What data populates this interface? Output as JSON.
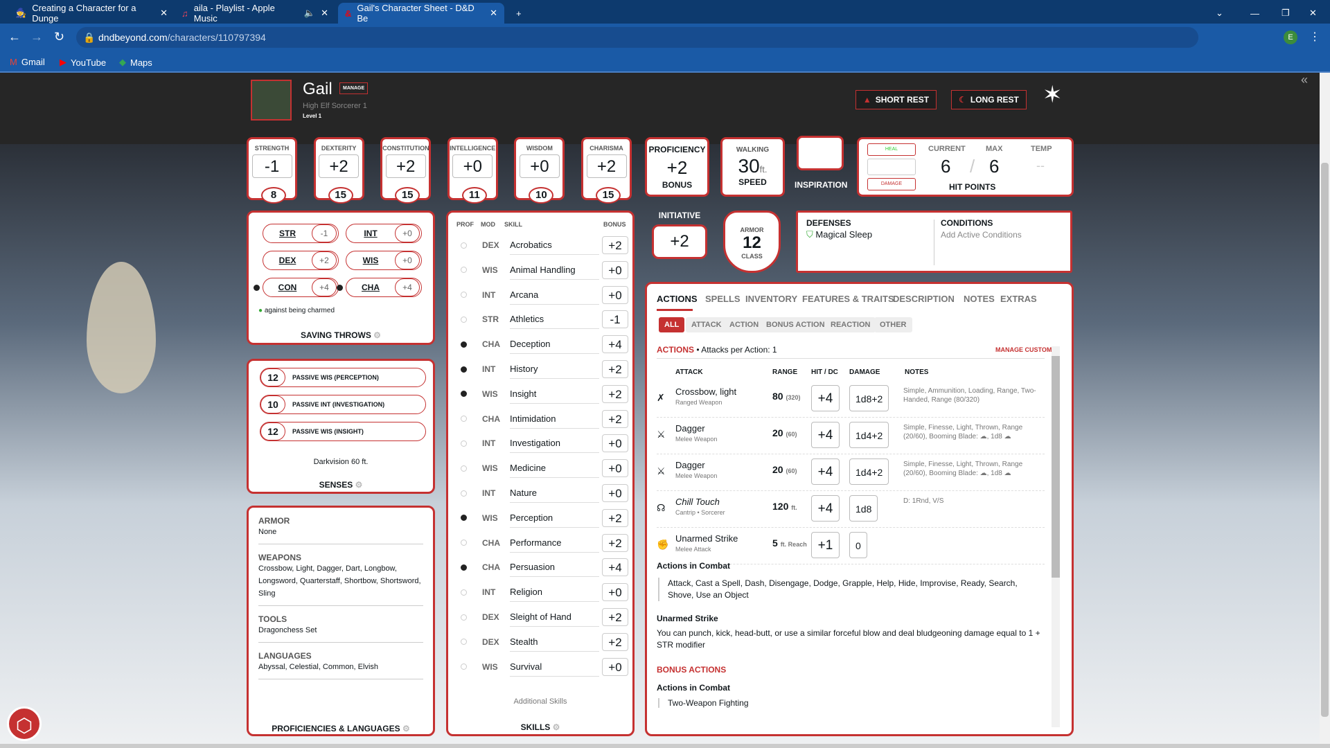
{
  "browser": {
    "tabs": [
      {
        "title": "Creating a Character for a Dunge",
        "icon": "dndbeyond-blog-icon"
      },
      {
        "title": "aila - Playlist - Apple Music",
        "icon": "apple-music-icon",
        "audio": true
      },
      {
        "title": "Gail's Character Sheet - D&D Be",
        "icon": "dndbeyond-icon",
        "active": true
      }
    ],
    "url_domain": "dndbeyond.com",
    "url_path": "/characters/110797394",
    "bookmarks": [
      "Gmail",
      "YouTube",
      "Maps"
    ]
  },
  "character": {
    "name": "Gail",
    "manage": "MANAGE",
    "race_class": "High Elf  Sorcerer 1",
    "level": "Level 1"
  },
  "header": {
    "short_rest": "SHORT REST",
    "long_rest": "LONG REST"
  },
  "abilities": [
    {
      "label": "STRENGTH",
      "mod": "-1",
      "score": "8"
    },
    {
      "label": "DEXTERITY",
      "mod": "+2",
      "score": "15"
    },
    {
      "label": "CONSTITUTION",
      "mod": "+2",
      "score": "15"
    },
    {
      "label": "INTELLIGENCE",
      "mod": "+0",
      "score": "11"
    },
    {
      "label": "WISDOM",
      "mod": "+0",
      "score": "10"
    },
    {
      "label": "CHARISMA",
      "mod": "+2",
      "score": "15"
    }
  ],
  "proficiency": {
    "top": "PROFICIENCY",
    "value": "+2",
    "bottom": "BONUS"
  },
  "speed": {
    "top": "WALKING",
    "value": "30",
    "unit": "ft.",
    "bottom": "SPEED"
  },
  "inspiration": {
    "label": "INSPIRATION"
  },
  "hp": {
    "heal": "HEAL",
    "damage": "DAMAGE",
    "current_label": "CURRENT",
    "max_label": "MAX",
    "temp_label": "TEMP",
    "current": "6",
    "max": "6",
    "temp": "--",
    "title": "HIT POINTS"
  },
  "saving_throws": {
    "items": [
      {
        "name": "STR",
        "value": "-1",
        "prof": false
      },
      {
        "name": "INT",
        "value": "+0",
        "prof": false
      },
      {
        "name": "DEX",
        "value": "+2",
        "prof": false
      },
      {
        "name": "WIS",
        "value": "+0",
        "prof": false
      },
      {
        "name": "CON",
        "value": "+4",
        "prof": true
      },
      {
        "name": "CHA",
        "value": "+4",
        "prof": true
      }
    ],
    "note": "against being charmed",
    "title": "SAVING THROWS"
  },
  "senses": {
    "items": [
      {
        "value": "12",
        "label": "PASSIVE WIS (PERCEPTION)"
      },
      {
        "value": "10",
        "label": "PASSIVE INT (INVESTIGATION)"
      },
      {
        "value": "12",
        "label": "PASSIVE WIS (INSIGHT)"
      }
    ],
    "note": "Darkvision 60 ft.",
    "title": "SENSES"
  },
  "proficiencies": {
    "sections": [
      {
        "h": "ARMOR",
        "v": "None"
      },
      {
        "h": "WEAPONS",
        "v": "Crossbow, Light, Dagger, Dart, Longbow, Longsword, Quarterstaff, Shortbow, Shortsword, Sling"
      },
      {
        "h": "TOOLS",
        "v": "Dragonchess Set"
      },
      {
        "h": "LANGUAGES",
        "v": "Abyssal, Celestial, Common, Elvish"
      }
    ],
    "title": "PROFICIENCIES & LANGUAGES"
  },
  "skills": {
    "headers": [
      "PROF",
      "MOD",
      "SKILL",
      "BONUS"
    ],
    "items": [
      {
        "p": false,
        "m": "DEX",
        "n": "Acrobatics",
        "b": "+2"
      },
      {
        "p": false,
        "m": "WIS",
        "n": "Animal Handling",
        "b": "+0"
      },
      {
        "p": false,
        "m": "INT",
        "n": "Arcana",
        "b": "+0"
      },
      {
        "p": false,
        "m": "STR",
        "n": "Athletics",
        "b": "-1"
      },
      {
        "p": true,
        "m": "CHA",
        "n": "Deception",
        "b": "+4"
      },
      {
        "p": true,
        "m": "INT",
        "n": "History",
        "b": "+2"
      },
      {
        "p": true,
        "m": "WIS",
        "n": "Insight",
        "b": "+2"
      },
      {
        "p": false,
        "m": "CHA",
        "n": "Intimidation",
        "b": "+2"
      },
      {
        "p": false,
        "m": "INT",
        "n": "Investigation",
        "b": "+0"
      },
      {
        "p": false,
        "m": "WIS",
        "n": "Medicine",
        "b": "+0"
      },
      {
        "p": false,
        "m": "INT",
        "n": "Nature",
        "b": "+0"
      },
      {
        "p": true,
        "m": "WIS",
        "n": "Perception",
        "b": "+2"
      },
      {
        "p": false,
        "m": "CHA",
        "n": "Performance",
        "b": "+2"
      },
      {
        "p": true,
        "m": "CHA",
        "n": "Persuasion",
        "b": "+4"
      },
      {
        "p": false,
        "m": "INT",
        "n": "Religion",
        "b": "+0"
      },
      {
        "p": false,
        "m": "DEX",
        "n": "Sleight of Hand",
        "b": "+2"
      },
      {
        "p": false,
        "m": "DEX",
        "n": "Stealth",
        "b": "+2"
      },
      {
        "p": false,
        "m": "WIS",
        "n": "Survival",
        "b": "+0"
      }
    ],
    "additional": "Additional Skills",
    "title": "SKILLS"
  },
  "initiative": {
    "label": "INITIATIVE",
    "value": "+2"
  },
  "armor": {
    "top": "ARMOR",
    "value": "12",
    "bottom": "CLASS"
  },
  "defenses": {
    "title": "DEFENSES",
    "items": [
      "Magical Sleep"
    ]
  },
  "conditions": {
    "title": "CONDITIONS",
    "placeholder": "Add Active Conditions"
  },
  "actions": {
    "tabs": [
      "ACTIONS",
      "SPELLS",
      "INVENTORY",
      "FEATURES & TRAITS",
      "DESCRIPTION",
      "NOTES",
      "EXTRAS"
    ],
    "filters": [
      "ALL",
      "ATTACK",
      "ACTION",
      "BONUS ACTION",
      "REACTION",
      "OTHER"
    ],
    "section_title": "ACTIONS",
    "attacks_per": "• Attacks per Action: 1",
    "manage_custom": "MANAGE CUSTOM",
    "columns": [
      "ATTACK",
      "RANGE",
      "HIT / DC",
      "DAMAGE",
      "NOTES"
    ],
    "rows": [
      {
        "icon": "crossbow-icon",
        "name": "Crossbow, light",
        "sub": "Ranged Weapon",
        "range": "80",
        "range2": "(320)",
        "hit": "+4",
        "dmg": "1d8+2",
        "notes": "Simple, Ammunition, Loading, Range, Two-Handed, Range (80/320)"
      },
      {
        "icon": "dagger-icon",
        "name": "Dagger",
        "sub": "Melee Weapon",
        "range": "20",
        "range2": "(60)",
        "hit": "+4",
        "dmg": "1d4+2",
        "notes": "Simple, Finesse, Light, Thrown, Range (20/60), Booming Blade: ☁, 1d8 ☁"
      },
      {
        "icon": "dagger-icon",
        "name": "Dagger",
        "sub": "Melee Weapon",
        "range": "20",
        "range2": "(60)",
        "hit": "+4",
        "dmg": "1d4+2",
        "notes": "Simple, Finesse, Light, Thrown, Range (20/60), Booming Blade: ☁, 1d8 ☁"
      },
      {
        "icon": "spell-icon",
        "name": "Chill Touch",
        "sub": "Cantrip • Sorcerer",
        "range": "120",
        "range2": "ft.",
        "hit": "+4",
        "dmg": "1d8",
        "notes": "D: 1Rnd, V/S"
      },
      {
        "icon": "fist-icon",
        "name": "Unarmed Strike",
        "sub": "Melee Attack",
        "range": "5",
        "range2": "ft. Reach",
        "hit": "+1",
        "dmg": "0",
        "notes": ""
      }
    ],
    "combat_title": "Actions in Combat",
    "combat_text": "Attack, Cast a Spell, Dash, Disengage, Dodge, Grapple, Help, Hide, Improvise, Ready, Search, Shove, Use an Object",
    "unarmed_title": "Unarmed Strike",
    "unarmed_text": "You can punch, kick, head-butt, or use a similar forceful blow and deal bludgeoning damage equal to 1 + STR modifier",
    "bonus_title": "BONUS ACTIONS",
    "bonus_combat": "Actions in Combat",
    "bonus_item": "Two-Weapon Fighting"
  },
  "colors": {
    "accent": "#c53131",
    "browser": "#1a5aa6"
  }
}
